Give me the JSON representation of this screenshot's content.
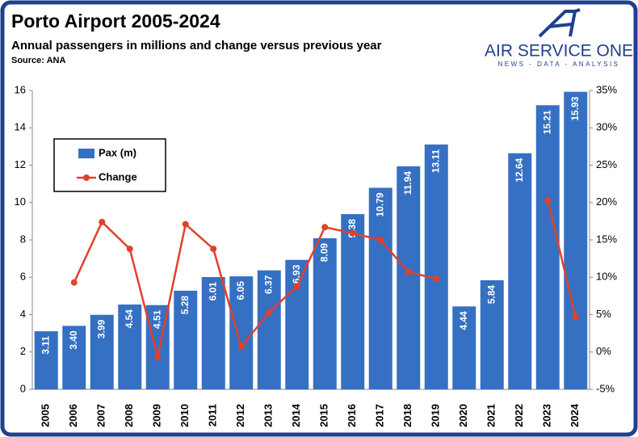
{
  "chart_data": {
    "type": "bar-line",
    "title": "Porto Airport 2005-2024",
    "subtitle": "Annual passengers in millions and change versus previous year",
    "source": "Source: ANA",
    "categories": [
      "2005",
      "2006",
      "2007",
      "2008",
      "2009",
      "2010",
      "2011",
      "2012",
      "2013",
      "2014",
      "2015",
      "2016",
      "2017",
      "2018",
      "2019",
      "2020",
      "2021",
      "2022",
      "2023",
      "2024"
    ],
    "series": [
      {
        "name": "Pax (m)",
        "color": "#3570c2",
        "type": "bar",
        "values": [
          3.11,
          3.4,
          3.99,
          4.54,
          4.51,
          5.28,
          6.01,
          6.05,
          6.37,
          6.93,
          8.09,
          9.38,
          10.79,
          11.94,
          13.11,
          4.44,
          5.84,
          12.64,
          15.21,
          15.93
        ],
        "value_labels": [
          "3.11",
          "3.40",
          "3.99",
          "4.54",
          "4.51",
          "5.28",
          "6.01",
          "6.05",
          "6.37",
          "6.93",
          "8.09",
          "9.38",
          "10.79",
          "11.94",
          "13.11",
          "4.44",
          "5.84",
          "12.64",
          "15.21",
          "15.93"
        ]
      },
      {
        "name": "Change",
        "color": "#e2402b",
        "type": "line",
        "axis": "y2",
        "values": [
          null,
          9.3,
          17.4,
          13.8,
          -0.7,
          17.1,
          13.8,
          0.7,
          5.3,
          8.8,
          16.7,
          15.9,
          15.0,
          10.7,
          9.8,
          null,
          null,
          null,
          20.3,
          4.7
        ]
      }
    ],
    "ylim": [
      0,
      16
    ],
    "yticks": [
      0,
      2,
      4,
      6,
      8,
      10,
      12,
      14,
      16
    ],
    "y2lim": [
      -5,
      35
    ],
    "y2ticks": [
      {
        "value": -5,
        "label": "-5%"
      },
      {
        "value": 0,
        "label": "0%"
      },
      {
        "value": 5,
        "label": "5%"
      },
      {
        "value": 10,
        "label": "10%"
      },
      {
        "value": 15,
        "label": "15%"
      },
      {
        "value": 20,
        "label": "20%"
      },
      {
        "value": 25,
        "label": "25%"
      },
      {
        "value": 30,
        "label": "30%"
      },
      {
        "value": 35,
        "label": "35%"
      }
    ],
    "legend": "top-left"
  },
  "logo": {
    "name": "AIR SERVICE ONE",
    "tagline": "NEWS - DATA - ANALYSIS"
  }
}
